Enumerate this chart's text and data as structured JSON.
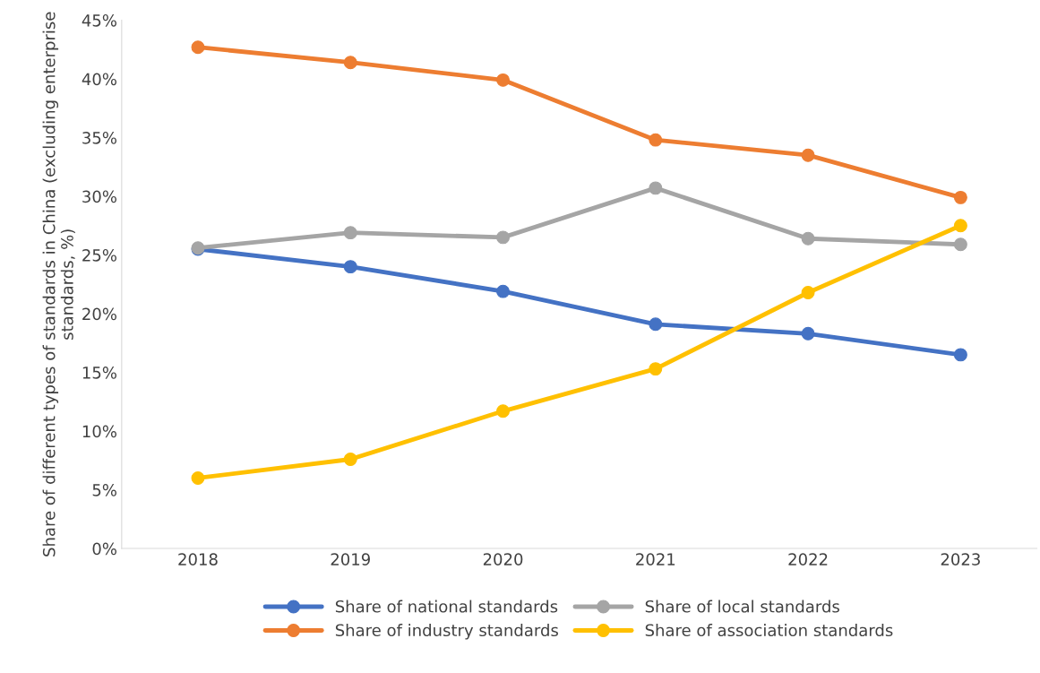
{
  "chart_data": {
    "type": "line",
    "ylabel": "Share of different types of standards in China (excluding enterprise standards, %)",
    "categories": [
      "2018",
      "2019",
      "2020",
      "2021",
      "2022",
      "2023"
    ],
    "series": [
      {
        "name": "Share of national standards",
        "color": "#4472c4",
        "values": [
          25.5,
          24.0,
          21.9,
          19.1,
          18.3,
          16.5
        ]
      },
      {
        "name": "Share of industry standards",
        "color": "#ed7d31",
        "values": [
          42.7,
          41.4,
          39.9,
          34.8,
          33.5,
          29.9
        ]
      },
      {
        "name": "Share of local standards",
        "color": "#a5a5a5",
        "values": [
          25.6,
          26.9,
          26.5,
          30.7,
          26.4,
          25.9
        ]
      },
      {
        "name": "Share of association standards",
        "color": "#ffc000",
        "values": [
          6.0,
          7.6,
          11.7,
          15.3,
          21.8,
          27.5
        ]
      }
    ],
    "ylim": [
      0,
      45
    ],
    "yticks": [
      {
        "value": 0,
        "label": "0%"
      },
      {
        "value": 5,
        "label": "5%"
      },
      {
        "value": 10,
        "label": "10%"
      },
      {
        "value": 15,
        "label": "15%"
      },
      {
        "value": 20,
        "label": "20%"
      },
      {
        "value": 25,
        "label": "25%"
      },
      {
        "value": 30,
        "label": "30%"
      },
      {
        "value": 35,
        "label": "35%"
      },
      {
        "value": 40,
        "label": "40%"
      },
      {
        "value": 45,
        "label": "45%"
      }
    ],
    "grid": false,
    "legend": "bottom",
    "marker": "circle",
    "line_style": "solid"
  }
}
